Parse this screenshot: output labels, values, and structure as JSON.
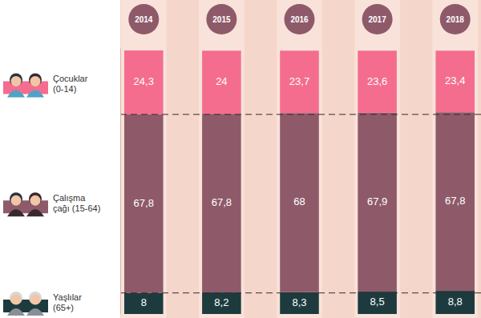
{
  "chart_data": {
    "type": "bar",
    "stacked": true,
    "data_labels": true,
    "legend": "left",
    "tick_labels": "x",
    "categories": [
      "2014",
      "2015",
      "2016",
      "2017",
      "2018"
    ],
    "ylim": [
      0,
      101
    ],
    "yticks": [],
    "series": [
      {
        "name": "Yaşlılar (65+)",
        "color": "#1d3b3e",
        "values": [
          8,
          8.2,
          8.3,
          8.5,
          8.8
        ],
        "value_labels": [
          "8",
          "8,2",
          "8,3",
          "8,5",
          "8,8"
        ]
      },
      {
        "name": "Çalışma çağı (15-64)",
        "color": "#8e5a6a",
        "values": [
          67.8,
          67.8,
          68,
          67.9,
          67.8
        ],
        "value_labels": [
          "67,8",
          "67,8",
          "68",
          "67,9",
          "67,8"
        ]
      },
      {
        "name": "Çocuklar (0-14)",
        "color": "#f46d8e",
        "values": [
          24.3,
          24,
          23.7,
          23.6,
          23.4
        ],
        "value_labels": [
          "24,3",
          "24",
          "23,7",
          "23,6",
          "23,4"
        ]
      }
    ]
  }
}
